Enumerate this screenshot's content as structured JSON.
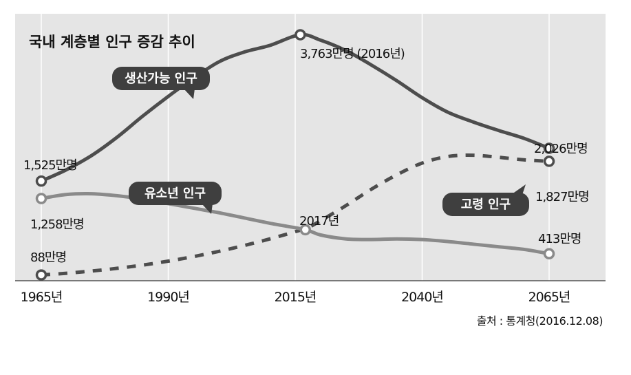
{
  "chart_data": {
    "type": "line",
    "title": "국내 계층별 인구 증감 추이",
    "source": "출처 : 통계청(2016.12.08)",
    "x_tick_labels": [
      "1965년",
      "1990년",
      "2015년",
      "2040년",
      "2065년"
    ],
    "x_ticks": [
      1965,
      1990,
      2015,
      2040,
      2065
    ],
    "xlim": [
      1965,
      2065
    ],
    "ylim": [
      0,
      4000
    ],
    "grid": true,
    "series": [
      {
        "name": "생산가능 인구",
        "color": "#4d4d4d",
        "dash": false,
        "x": [
          1965,
          1970,
          1975,
          1980,
          1985,
          1990,
          1995,
          2000,
          2005,
          2010,
          2016,
          2020,
          2025,
          2030,
          2035,
          2040,
          2045,
          2050,
          2055,
          2060,
          2065
        ],
        "y": [
          1525,
          1700,
          1920,
          2200,
          2520,
          2820,
          3100,
          3350,
          3500,
          3600,
          3763,
          3680,
          3520,
          3300,
          3060,
          2800,
          2580,
          2430,
          2300,
          2180,
          2026
        ]
      },
      {
        "name": "유소년 인구",
        "color": "#8a8a8a",
        "dash": false,
        "x": [
          1965,
          1970,
          1975,
          1980,
          1985,
          1990,
          1995,
          2000,
          2005,
          2010,
          2017,
          2020,
          2025,
          2030,
          2035,
          2040,
          2045,
          2050,
          2055,
          2060,
          2065
        ],
        "y": [
          1258,
          1320,
          1330,
          1300,
          1250,
          1180,
          1110,
          1040,
          960,
          880,
          780,
          700,
          640,
          630,
          640,
          630,
          600,
          560,
          520,
          480,
          413
        ]
      },
      {
        "name": "고령 인구",
        "color": "#4d4d4d",
        "dash": true,
        "x": [
          1965,
          1970,
          1975,
          1980,
          1985,
          1990,
          1995,
          2000,
          2005,
          2010,
          2017,
          2020,
          2025,
          2030,
          2035,
          2040,
          2045,
          2050,
          2055,
          2060,
          2065
        ],
        "y": [
          88,
          115,
          150,
          190,
          240,
          300,
          370,
          450,
          540,
          640,
          800,
          920,
          1150,
          1400,
          1620,
          1800,
          1900,
          1920,
          1890,
          1850,
          1827
        ]
      }
    ],
    "annotations": [
      {
        "series": 0,
        "x": 1965,
        "y": 1525,
        "label": "1,525만명"
      },
      {
        "series": 0,
        "x": 2016,
        "y": 3763,
        "label": "3,763만명 (2016년)"
      },
      {
        "series": 0,
        "x": 2065,
        "y": 2026,
        "label": "2,026만명"
      },
      {
        "series": 1,
        "x": 1965,
        "y": 1258,
        "label": "1,258만명"
      },
      {
        "series": 1,
        "x": 2017,
        "y": 780,
        "label": "2017년"
      },
      {
        "series": 1,
        "x": 2065,
        "y": 413,
        "label": "413만명"
      },
      {
        "series": 2,
        "x": 1965,
        "y": 88,
        "label": "88만명"
      },
      {
        "series": 2,
        "x": 2065,
        "y": 1827,
        "label": "1,827만명"
      }
    ],
    "pill_labels": [
      {
        "series": 0,
        "label": "생산가능 인구"
      },
      {
        "series": 1,
        "label": "유소년 인구"
      },
      {
        "series": 2,
        "label": "고령 인구"
      }
    ]
  }
}
